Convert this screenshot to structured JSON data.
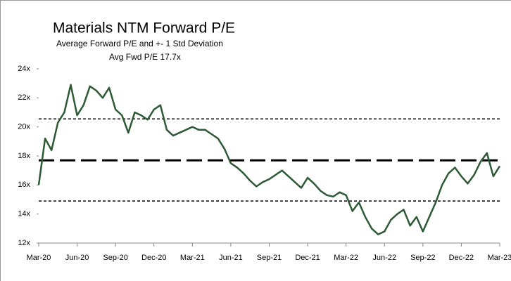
{
  "chart_data": {
    "type": "line",
    "title": "Materials NTM Forward P/E",
    "subtitle": "Average Forward P/E and +- 1 Std Deviation",
    "annotation": "Avg Fwd P/E 17.7x",
    "x": [
      0,
      0.5,
      1,
      1.5,
      2,
      2.5,
      3,
      3.5,
      4,
      4.5,
      5,
      5.5,
      6,
      6.5,
      7,
      7.5,
      8,
      8.5,
      9,
      9.5,
      10,
      10.5,
      11,
      11.5,
      12,
      12.5,
      13,
      13.5,
      14,
      14.5,
      15,
      15.5,
      16,
      16.5,
      17,
      17.5,
      18,
      18.5,
      19,
      19.5,
      20,
      20.5,
      21,
      21.5,
      22,
      22.5,
      23,
      23.5,
      24,
      24.5,
      25,
      25.5,
      26,
      26.5,
      27,
      27.5,
      28,
      28.5,
      29,
      29.5,
      30,
      30.5,
      31,
      31.5,
      32,
      32.5,
      33,
      33.5,
      34,
      34.5,
      35,
      35.5,
      36
    ],
    "series": [
      {
        "color": "#2d5a35",
        "values": [
          16.0,
          19.2,
          18.4,
          20.3,
          21.0,
          22.9,
          20.8,
          21.5,
          22.8,
          22.5,
          22.0,
          22.7,
          21.2,
          20.8,
          19.6,
          21.0,
          20.8,
          20.5,
          21.2,
          21.5,
          19.8,
          19.4,
          19.6,
          19.8,
          20.0,
          19.8,
          19.8,
          19.5,
          19.2,
          18.5,
          17.5,
          17.2,
          16.8,
          16.3,
          15.9,
          16.2,
          16.4,
          16.7,
          17.0,
          16.6,
          16.2,
          15.8,
          16.5,
          16.1,
          15.6,
          15.3,
          15.2,
          15.5,
          15.3,
          14.2,
          14.8,
          13.8,
          13.0,
          12.6,
          12.8,
          13.6,
          14.0,
          14.3,
          13.2,
          13.8,
          12.8,
          13.8,
          14.8,
          16.0,
          16.8,
          17.2,
          16.6,
          16.1,
          16.7,
          17.6,
          18.2,
          16.6,
          17.3
        ]
      }
    ],
    "mean": 17.7,
    "upper": 20.55,
    "lower": 14.9,
    "xlim": [
      0,
      36
    ],
    "xticks": [
      {
        "value": 0,
        "label": "Mar-20"
      },
      {
        "value": 3,
        "label": "Jun-20"
      },
      {
        "value": 6,
        "label": "Sep-20"
      },
      {
        "value": 9,
        "label": "Dec-20"
      },
      {
        "value": 12,
        "label": "Mar-21"
      },
      {
        "value": 15,
        "label": "Jun-21"
      },
      {
        "value": 18,
        "label": "Sep-21"
      },
      {
        "value": 21,
        "label": "Dec-21"
      },
      {
        "value": 24,
        "label": "Mar-22"
      },
      {
        "value": 27,
        "label": "Jun-22"
      },
      {
        "value": 30,
        "label": "Sep-22"
      },
      {
        "value": 33,
        "label": "Dec-22"
      },
      {
        "value": 36,
        "label": "Mar-23"
      }
    ],
    "ylim": [
      12,
      24
    ],
    "yticks": [
      {
        "value": 12,
        "label": "12x"
      },
      {
        "value": 14,
        "label": "14x"
      },
      {
        "value": 16,
        "label": "16x"
      },
      {
        "value": 18,
        "label": "18x"
      },
      {
        "value": 20,
        "label": "20x"
      },
      {
        "value": 22,
        "label": "22x"
      },
      {
        "value": 24,
        "label": "24x"
      }
    ]
  }
}
